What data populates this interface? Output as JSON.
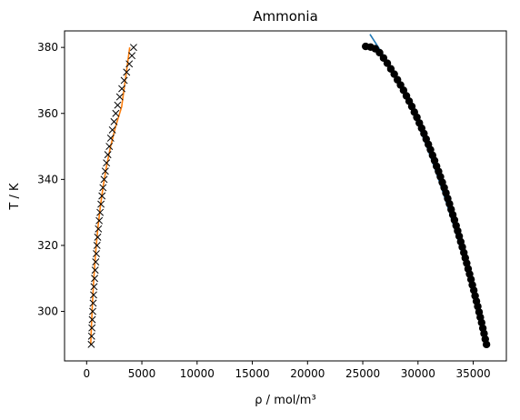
{
  "chart_data": {
    "type": "line",
    "title": "Ammonia",
    "xlabel": "ρ / mol/m³",
    "ylabel": "T / K",
    "xlim": [
      -2000,
      38000
    ],
    "ylim": [
      285,
      385
    ],
    "xticks": [
      0,
      5000,
      10000,
      15000,
      20000,
      25000,
      30000,
      35000
    ],
    "yticks": [
      300,
      320,
      340,
      360,
      380
    ],
    "grid": false,
    "legend": "none",
    "series": [
      {
        "kind": "line",
        "color": "#1f77b4",
        "x": [
          36100,
          35780,
          35300,
          34800,
          34290,
          33770,
          33230,
          32660,
          32070,
          31450,
          30790,
          30080,
          29310,
          28470,
          27520,
          26420,
          25650
        ],
        "y": [
          290,
          295,
          302,
          308,
          314,
          320,
          326,
          332,
          338,
          344,
          350,
          356,
          362,
          368,
          374,
          380,
          384
        ]
      },
      {
        "kind": "line",
        "color": "#ff7f0e",
        "x": [
          370,
          440,
          520,
          615,
          730,
          870,
          1040,
          1250,
          1500,
          1800,
          2170,
          2620,
          3170,
          3900
        ],
        "y": [
          290,
          296,
          302,
          308,
          314,
          320,
          326,
          332,
          338,
          344,
          350,
          356,
          362,
          380
        ]
      },
      {
        "kind": "scatter",
        "marker": "circle",
        "color": "#000000",
        "x": [
          36200,
          36090,
          35980,
          35870,
          35760,
          35640,
          35530,
          35410,
          35290,
          35170,
          35050,
          34920,
          34800,
          34670,
          34540,
          34410,
          34280,
          34150,
          34010,
          33870,
          33730,
          33590,
          33450,
          33300,
          33150,
          33000,
          32850,
          32690,
          32530,
          32370,
          32200,
          32030,
          31860,
          31680,
          31500,
          31320,
          31130,
          30940,
          30740,
          30540,
          30330,
          30120,
          29900,
          29670,
          29440,
          29200,
          28950,
          28690,
          28420,
          28140,
          27850,
          27540,
          27220,
          26880,
          26520,
          26130,
          25710,
          25260
        ],
        "y": [
          290,
          291.6,
          293.3,
          294.9,
          296.6,
          298.2,
          299.8,
          301.5,
          303.1,
          304.7,
          306.4,
          308,
          309.7,
          311.3,
          312.9,
          314.6,
          316.2,
          317.8,
          319.5,
          321.1,
          322.8,
          324.4,
          326,
          327.7,
          329.3,
          330.9,
          332.6,
          334.2,
          335.9,
          337.5,
          339.1,
          340.8,
          342.4,
          344,
          345.7,
          347.3,
          349,
          350.6,
          352.2,
          353.9,
          355.5,
          357.1,
          358.8,
          360.4,
          362.1,
          363.7,
          365.3,
          367,
          368.6,
          370.2,
          371.9,
          373.5,
          375.2,
          376.8,
          378.4,
          379.6,
          380.1,
          380.3
        ]
      },
      {
        "kind": "scatter",
        "marker": "x",
        "color": "#000000",
        "x": [
          420,
          450,
          480,
          510,
          550,
          590,
          630,
          670,
          720,
          770,
          820,
          880,
          940,
          1000,
          1070,
          1140,
          1220,
          1300,
          1390,
          1480,
          1580,
          1690,
          1800,
          1920,
          2050,
          2180,
          2330,
          2480,
          2640,
          2810,
          3000,
          3190,
          3400,
          3620,
          3860,
          4100,
          4250
        ],
        "y": [
          290,
          292.5,
          295,
          297.5,
          300,
          302.5,
          305,
          307.5,
          310,
          312.5,
          315,
          317.5,
          320,
          322.5,
          325,
          327.5,
          330,
          332.5,
          335,
          337.5,
          340,
          342.5,
          345,
          347.5,
          350,
          352.5,
          355,
          357.5,
          360,
          362.5,
          365,
          367.5,
          370,
          372.5,
          375,
          377.5,
          380
        ]
      }
    ]
  }
}
